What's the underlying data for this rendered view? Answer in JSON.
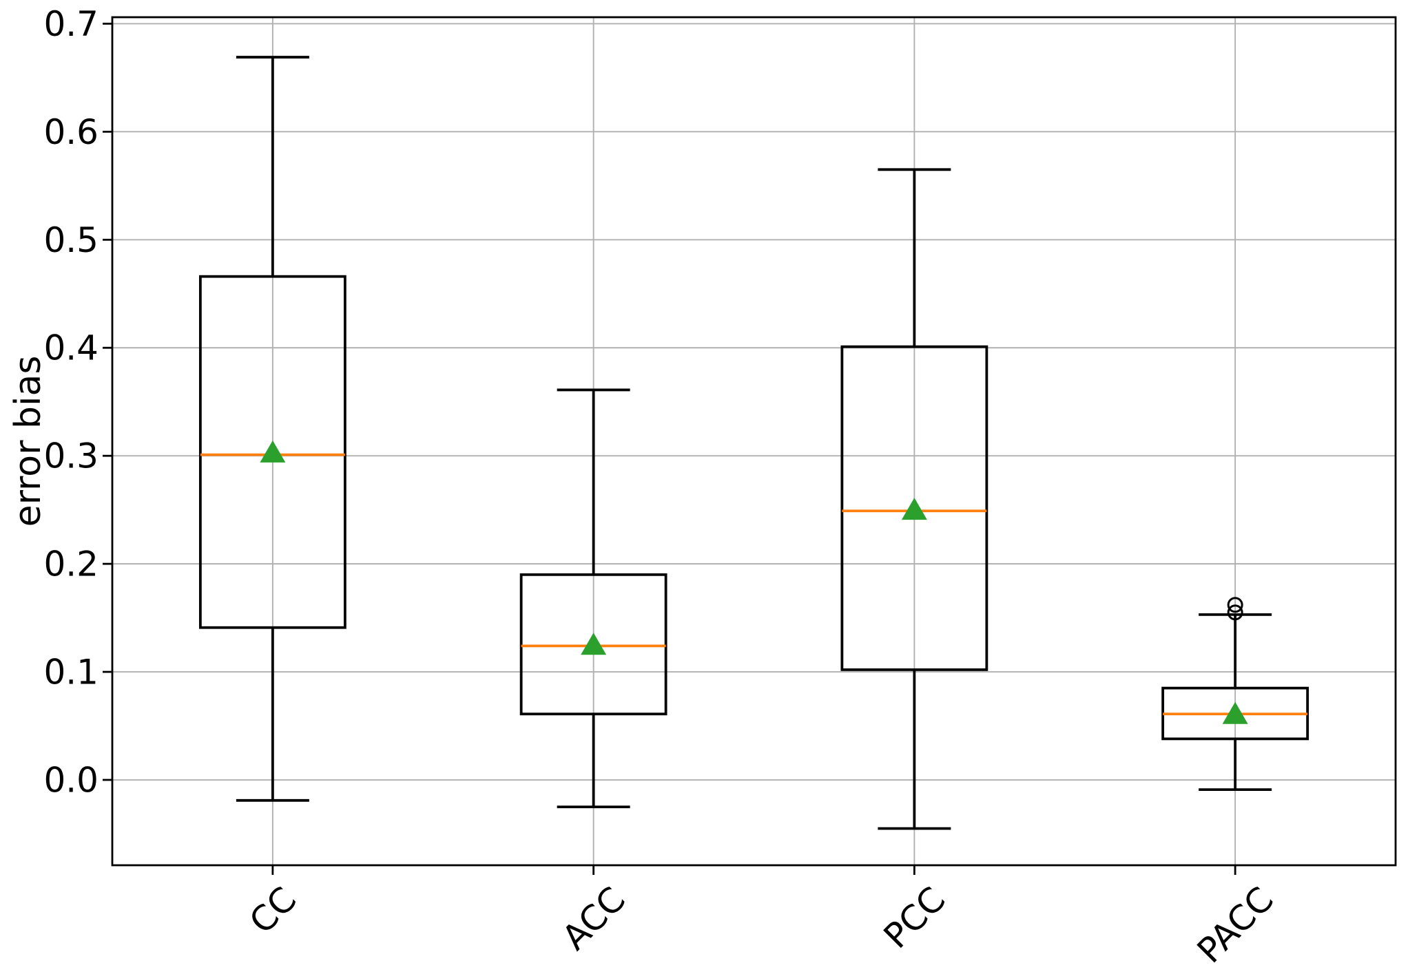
{
  "chart_data": {
    "type": "boxplot",
    "title": "",
    "xlabel": "",
    "ylabel": "error bias",
    "categories": [
      "CC",
      "ACC",
      "PCC",
      "PACC"
    ],
    "ylim": [
      -0.079,
      0.706
    ],
    "yticks": [
      0.0,
      0.1,
      0.2,
      0.3,
      0.4,
      0.5,
      0.6,
      0.7
    ],
    "ytick_labels": [
      "0.0",
      "0.1",
      "0.2",
      "0.3",
      "0.4",
      "0.5",
      "0.6",
      "0.7"
    ],
    "xtick_rotation_deg": 45,
    "grid": true,
    "legend": "none",
    "series": [
      {
        "name": "CC",
        "whisker_low": -0.019,
        "q1": 0.141,
        "median": 0.301,
        "q3": 0.466,
        "whisker_high": 0.669,
        "mean": 0.304,
        "outliers": []
      },
      {
        "name": "ACC",
        "whisker_low": -0.025,
        "q1": 0.061,
        "median": 0.124,
        "q3": 0.19,
        "whisker_high": 0.361,
        "mean": 0.126,
        "outliers": []
      },
      {
        "name": "PCC",
        "whisker_low": -0.045,
        "q1": 0.102,
        "median": 0.249,
        "q3": 0.401,
        "whisker_high": 0.565,
        "mean": 0.251,
        "outliers": []
      },
      {
        "name": "PACC",
        "whisker_low": -0.009,
        "q1": 0.038,
        "median": 0.061,
        "q3": 0.085,
        "whisker_high": 0.153,
        "mean": 0.062,
        "outliers": [
          0.155,
          0.162
        ]
      }
    ],
    "colors": {
      "box": "#000000",
      "whisker": "#000000",
      "median": "#ff7f0e",
      "mean_marker": "#2ca02c",
      "outlier_stroke": "#000000",
      "grid": "#b0b0b0",
      "spine": "#000000",
      "background": "#ffffff"
    },
    "markers": {
      "mean": "triangle-up",
      "outlier": "open-circle"
    }
  }
}
